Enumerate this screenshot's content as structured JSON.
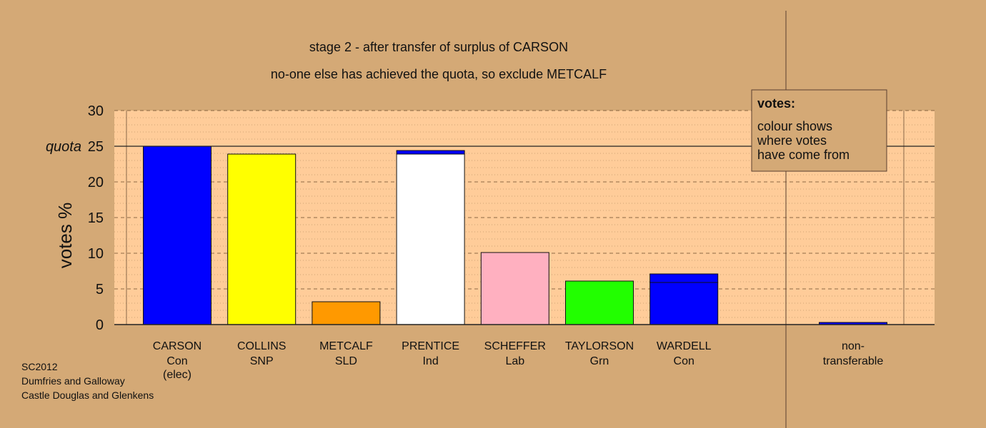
{
  "chart_data": {
    "type": "bar",
    "title": "stage 2 - after transfer of surplus of CARSON",
    "subtitle": "no-one else has achieved the quota, so exclude METCALF",
    "ylabel": "votes %",
    "ylim": [
      0,
      30
    ],
    "yticks": [
      0,
      5,
      10,
      15,
      20,
      25,
      30
    ],
    "quota_value": 25,
    "quota_label": "quota",
    "candidates": [
      {
        "name": "CARSON",
        "party": "Con",
        "note": "(elec)",
        "color": "#0000ff",
        "segments": [
          {
            "value": 25.0,
            "color": "#0000ff"
          }
        ]
      },
      {
        "name": "COLLINS",
        "party": "SNP",
        "note": "",
        "color": "#ffff00",
        "segments": [
          {
            "value": 23.9,
            "color": "#ffff00"
          }
        ]
      },
      {
        "name": "METCALF",
        "party": "SLD",
        "note": "",
        "color": "#ff9900",
        "segments": [
          {
            "value": 3.2,
            "color": "#ff9900"
          }
        ]
      },
      {
        "name": "PRENTICE",
        "party": "Ind",
        "note": "",
        "color": "#ffffff",
        "segments": [
          {
            "value": 23.9,
            "color": "#ffffff"
          },
          {
            "value": 0.5,
            "color": "#0000ff"
          }
        ]
      },
      {
        "name": "SCHEFFER",
        "party": "Lab",
        "note": "",
        "color": "#ffb0c0",
        "segments": [
          {
            "value": 10.1,
            "color": "#ffb0c0"
          }
        ]
      },
      {
        "name": "TAYLORSON",
        "party": "Grn",
        "note": "",
        "color": "#22ff00",
        "segments": [
          {
            "value": 6.1,
            "color": "#22ff00"
          }
        ]
      },
      {
        "name": "WARDELL",
        "party": "Con",
        "note": "",
        "color": "#0000ff",
        "segments": [
          {
            "value": 5.9,
            "color": "#0000ff"
          },
          {
            "value": 1.2,
            "color": "#0000ff"
          }
        ]
      }
    ],
    "nontransferable": {
      "label_line1": "non-",
      "label_line2": "transferable",
      "value": 0.3,
      "color": "#0000ff"
    },
    "legend": {
      "title": "votes:",
      "lines": [
        "colour shows",
        "where votes",
        "have come from"
      ],
      "placement": "top-right"
    },
    "grid": true
  },
  "footer": {
    "lines": [
      "SC2012",
      "Dumfries and Galloway",
      "Castle Douglas and Glenkens"
    ]
  }
}
